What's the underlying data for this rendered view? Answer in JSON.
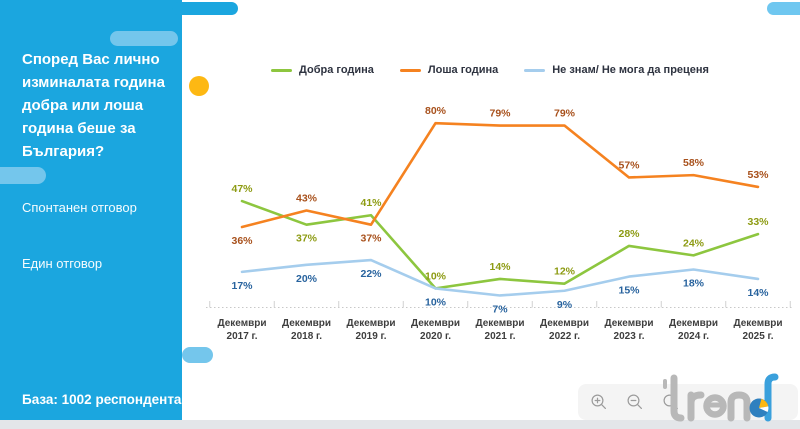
{
  "sidebar": {
    "title": "Според Вас лично изминалата година добра или лоша година беше за България?",
    "subtitle_1": "Спонтанен отговор",
    "subtitle_2": "Един отговор",
    "base": "База:  1002 респондента",
    "bg_color": "#1BA6DF",
    "accent_yellow": "#FDB813"
  },
  "chart_data": {
    "type": "line",
    "title": "",
    "xlabel": "",
    "ylabel": "",
    "ylim": [
      0,
      100
    ],
    "grid": false,
    "legend_position": "top",
    "categories": [
      "Декември 2017 г.",
      "Декември 2018 г.",
      "Декември 2019 г.",
      "Декември 2020 г.",
      "Декември 2021 г.",
      "Декември 2022 г.",
      "Декември 2023 г.",
      "Декември 2024 г.",
      "Декември 2025 г."
    ],
    "series": [
      {
        "name": "Добра година",
        "color": "#8DC63F",
        "label_color": "#8D9B13",
        "values": [
          47,
          37,
          41,
          10,
          14,
          12,
          28,
          24,
          33
        ],
        "label_side": [
          "above",
          "below",
          "above",
          "above",
          "above",
          "above",
          "above",
          "above",
          "above"
        ]
      },
      {
        "name": "Лоша година",
        "color": "#F58220",
        "label_color": "#A8511C",
        "values": [
          36,
          43,
          37,
          80,
          79,
          79,
          57,
          58,
          53
        ],
        "label_side": [
          "below",
          "above",
          "below",
          "above",
          "above",
          "above",
          "above",
          "above",
          "above"
        ]
      },
      {
        "name": "Не знам/ Не мога да преценя",
        "color": "#A5CDED",
        "label_color": "#28639E",
        "values": [
          17,
          20,
          22,
          10,
          7,
          9,
          15,
          18,
          14
        ],
        "label_side": [
          "below",
          "below",
          "below",
          "below",
          "below",
          "below",
          "below",
          "below",
          "below"
        ]
      }
    ]
  },
  "toolbar": {
    "icons": [
      "zoom-in",
      "zoom-out",
      "search",
      "more"
    ]
  },
  "logo": {
    "brand": "trend"
  }
}
